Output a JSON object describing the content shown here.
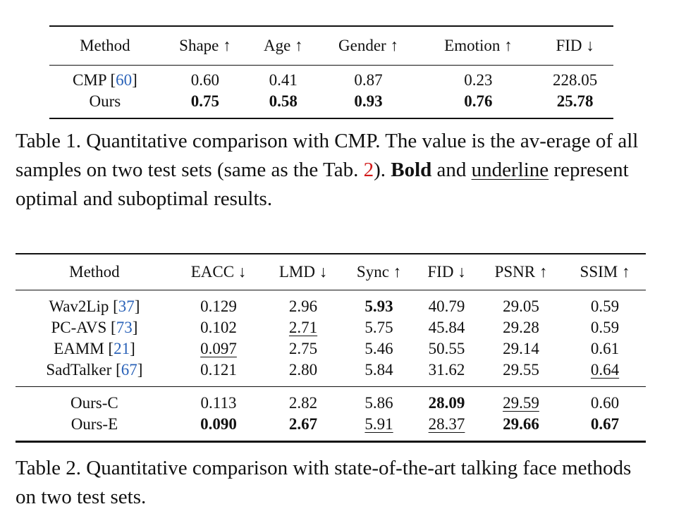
{
  "table1": {
    "headers": [
      "Method",
      "Shape ↑",
      "Age ↑",
      "Gender ↑",
      "Emotion ↑",
      "FID ↓"
    ],
    "rows": [
      {
        "method": "CMP",
        "cite": "60",
        "values": [
          "0.60",
          "0.41",
          "0.87",
          "0.23",
          "228.05"
        ]
      },
      {
        "method": "Ours",
        "values": [
          "0.75",
          "0.58",
          "0.93",
          "0.76",
          "25.78"
        ]
      }
    ],
    "caption": {
      "label": "Table 1.",
      "text1": "Quantitative comparison with CMP. The value is the av-erage of all samples on two test sets (same as the Tab.",
      "ref": "2",
      "text2": ").",
      "bold_word": "Bold",
      "text3": "and",
      "underline_word": "underline",
      "text4": "represent optimal and suboptimal results."
    }
  },
  "table2": {
    "headers": [
      "Method",
      "EACC ↓",
      "LMD ↓",
      "Sync ↑",
      "FID ↓",
      "PSNR ↑",
      "SSIM ↑"
    ],
    "rows": [
      {
        "method": "Wav2Lip",
        "cite": "37",
        "values": [
          "0.129",
          "2.96",
          "5.93",
          "40.79",
          "29.05",
          "0.59"
        ]
      },
      {
        "method": "PC-AVS",
        "cite": "73",
        "values": [
          "0.102",
          "2.71",
          "5.75",
          "45.84",
          "29.28",
          "0.59"
        ]
      },
      {
        "method": "EAMM",
        "cite": "21",
        "values": [
          "0.097",
          "2.75",
          "5.46",
          "50.55",
          "29.14",
          "0.61"
        ]
      },
      {
        "method": "SadTalker",
        "cite": "67",
        "values": [
          "0.121",
          "2.80",
          "5.84",
          "31.62",
          "29.55",
          "0.64"
        ]
      },
      {
        "method": "Ours-C",
        "values": [
          "0.113",
          "2.82",
          "5.86",
          "28.09",
          "29.59",
          "0.60"
        ]
      },
      {
        "method": "Ours-E",
        "values": [
          "0.090",
          "2.67",
          "5.91",
          "28.37",
          "29.66",
          "0.67"
        ]
      }
    ],
    "caption": {
      "label": "Table 2.",
      "text": "Quantitative comparison with state-of-the-art talking face methods on two test sets."
    }
  }
}
